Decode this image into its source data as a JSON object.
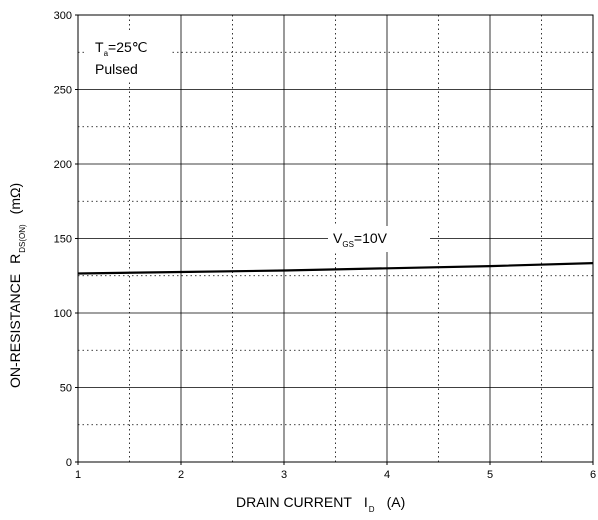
{
  "chart_data": {
    "type": "line",
    "xlabel": "DRAIN CURRENT",
    "xlabel_symbol": "I",
    "xlabel_symbol_sub": "D",
    "xlabel_unit": "(A)",
    "ylabel": "ON-RESISTANCE",
    "ylabel_symbol": "R",
    "ylabel_symbol_sub": "DS(ON)",
    "ylabel_unit": "(mΩ)",
    "xlim": [
      1,
      6
    ],
    "ylim": [
      0,
      300
    ],
    "x_ticks": [
      "1",
      "2",
      "3",
      "4",
      "5",
      "6"
    ],
    "y_ticks": [
      "0",
      "50",
      "100",
      "150",
      "200",
      "250",
      "300"
    ],
    "grid": "major solid, minor dotted",
    "annotations": {
      "temp_symbol": "T",
      "temp_sub": "a",
      "temp_value": "=25℃",
      "mode": "Pulsed"
    },
    "series": [
      {
        "name_symbol": "V",
        "name_sub": "GS",
        "name_value": "=10V",
        "x": [
          1,
          2,
          3,
          4,
          5,
          6
        ],
        "y": [
          126.5,
          127.5,
          128.5,
          130,
          131.5,
          133.5
        ],
        "color": "#000000"
      }
    ]
  }
}
